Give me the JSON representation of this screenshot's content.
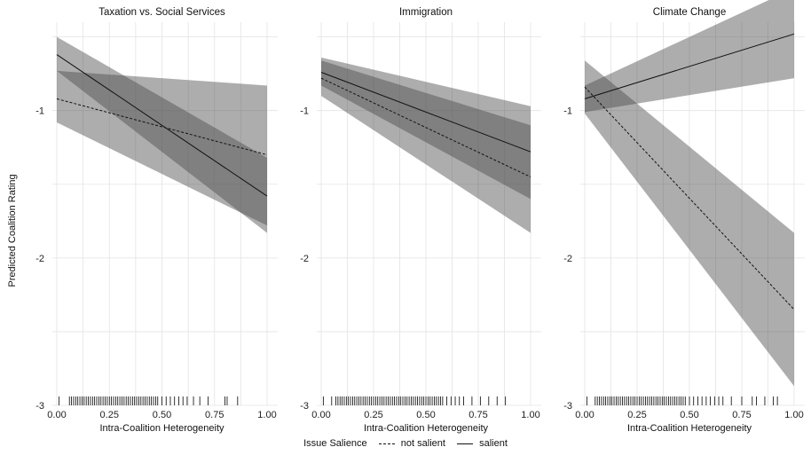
{
  "chart_data": {
    "type": "line",
    "ylabel": "Predicted Coalition Rating",
    "xlabel": "Intra-Coalition Heterogeneity",
    "xlim": [
      0,
      1
    ],
    "ylim": [
      -3,
      -0.4
    ],
    "xticks": [
      0,
      0.25,
      0.5,
      0.75,
      1
    ],
    "xtick_labels": [
      "0.00",
      "0.25",
      "0.50",
      "0.75",
      "1.00"
    ],
    "yticks": [
      -3,
      -2,
      -1
    ],
    "ytick_labels": [
      "-3",
      "-2",
      "-1"
    ],
    "grid": true,
    "legend": {
      "title": "Issue Salience",
      "entries": [
        "not salient",
        "salient"
      ],
      "position": "bottom"
    },
    "panels": [
      {
        "title": "Taxation vs. Social Services",
        "series": [
          {
            "name": "not salient",
            "x": [
              0,
              1
            ],
            "y": [
              -0.92,
              -1.3
            ],
            "ci_lower": [
              -1.08,
              -1.78
            ],
            "ci_upper": [
              -0.73,
              -0.83
            ]
          },
          {
            "name": "salient",
            "x": [
              0,
              1
            ],
            "y": [
              -0.62,
              -1.58
            ],
            "ci_lower": [
              -0.73,
              -1.83
            ],
            "ci_upper": [
              -0.5,
              -1.32
            ]
          }
        ],
        "rug": [
          0.01,
          0.06,
          0.07,
          0.08,
          0.09,
          0.1,
          0.11,
          0.12,
          0.13,
          0.14,
          0.15,
          0.16,
          0.17,
          0.18,
          0.19,
          0.2,
          0.21,
          0.22,
          0.23,
          0.24,
          0.25,
          0.26,
          0.27,
          0.28,
          0.29,
          0.3,
          0.31,
          0.32,
          0.33,
          0.34,
          0.35,
          0.36,
          0.37,
          0.38,
          0.39,
          0.4,
          0.41,
          0.42,
          0.43,
          0.44,
          0.45,
          0.46,
          0.47,
          0.48,
          0.5,
          0.52,
          0.54,
          0.56,
          0.58,
          0.6,
          0.62,
          0.65,
          0.68,
          0.72,
          0.8,
          0.81,
          0.86
        ]
      },
      {
        "title": "Immigration",
        "series": [
          {
            "name": "not salient",
            "x": [
              0,
              1
            ],
            "y": [
              -0.78,
              -1.45
            ],
            "ci_lower": [
              -0.9,
              -1.83
            ],
            "ci_upper": [
              -0.66,
              -1.1
            ]
          },
          {
            "name": "salient",
            "x": [
              0,
              1
            ],
            "y": [
              -0.74,
              -1.28
            ],
            "ci_lower": [
              -0.83,
              -1.6
            ],
            "ci_upper": [
              -0.64,
              -0.97
            ]
          }
        ],
        "rug": [
          0.01,
          0.05,
          0.07,
          0.08,
          0.09,
          0.1,
          0.11,
          0.12,
          0.13,
          0.14,
          0.15,
          0.16,
          0.17,
          0.18,
          0.19,
          0.2,
          0.21,
          0.22,
          0.23,
          0.24,
          0.25,
          0.26,
          0.27,
          0.28,
          0.29,
          0.3,
          0.31,
          0.32,
          0.33,
          0.34,
          0.35,
          0.36,
          0.37,
          0.38,
          0.39,
          0.4,
          0.41,
          0.42,
          0.43,
          0.44,
          0.45,
          0.46,
          0.47,
          0.48,
          0.49,
          0.5,
          0.51,
          0.52,
          0.53,
          0.54,
          0.55,
          0.56,
          0.57,
          0.58,
          0.6,
          0.62,
          0.64,
          0.66,
          0.68,
          0.72,
          0.76,
          0.8,
          0.84,
          0.88
        ]
      },
      {
        "title": "Climate Change",
        "series": [
          {
            "name": "not salient",
            "x": [
              0,
              1
            ],
            "y": [
              -0.84,
              -2.35
            ],
            "ci_lower": [
              -1.02,
              -2.87
            ],
            "ci_upper": [
              -0.66,
              -1.83
            ]
          },
          {
            "name": "salient",
            "x": [
              0,
              1
            ],
            "y": [
              -0.92,
              -0.48
            ],
            "ci_lower": [
              -1.01,
              -0.78
            ],
            "ci_upper": [
              -0.83,
              -0.17
            ]
          }
        ],
        "rug": [
          0.01,
          0.05,
          0.06,
          0.07,
          0.08,
          0.09,
          0.1,
          0.11,
          0.12,
          0.13,
          0.14,
          0.15,
          0.16,
          0.17,
          0.18,
          0.19,
          0.2,
          0.21,
          0.22,
          0.23,
          0.24,
          0.25,
          0.26,
          0.27,
          0.28,
          0.29,
          0.3,
          0.31,
          0.32,
          0.33,
          0.34,
          0.35,
          0.36,
          0.37,
          0.38,
          0.39,
          0.4,
          0.41,
          0.42,
          0.43,
          0.44,
          0.45,
          0.46,
          0.47,
          0.48,
          0.5,
          0.52,
          0.54,
          0.56,
          0.58,
          0.6,
          0.62,
          0.64,
          0.66,
          0.7,
          0.75,
          0.8,
          0.82,
          0.86,
          0.9,
          0.92
        ]
      }
    ]
  }
}
